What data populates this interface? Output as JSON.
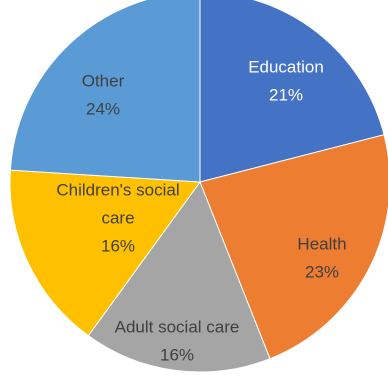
{
  "chart_data": {
    "type": "pie",
    "title": "",
    "slices": [
      {
        "name": "Education",
        "value": 21,
        "pct_label": "21%",
        "color": "#4472C4",
        "label_color": "#ffffff"
      },
      {
        "name": "Health",
        "value": 23,
        "pct_label": "23%",
        "color": "#ED7D31",
        "label_color": "#404040"
      },
      {
        "name": "Adult social care",
        "value": 16,
        "pct_label": "16%",
        "color": "#A5A5A5",
        "label_color": "#404040"
      },
      {
        "name": "Children's social care",
        "value": 16,
        "pct_label": "16%",
        "color": "#FFC000",
        "label_color": "#404040"
      },
      {
        "name": "Other",
        "value": 24,
        "pct_label": "24%",
        "color": "#5B9BD5",
        "label_color": "#404040"
      }
    ],
    "start_angle": "12 o'clock",
    "direction": "clockwise",
    "legend": "none"
  }
}
